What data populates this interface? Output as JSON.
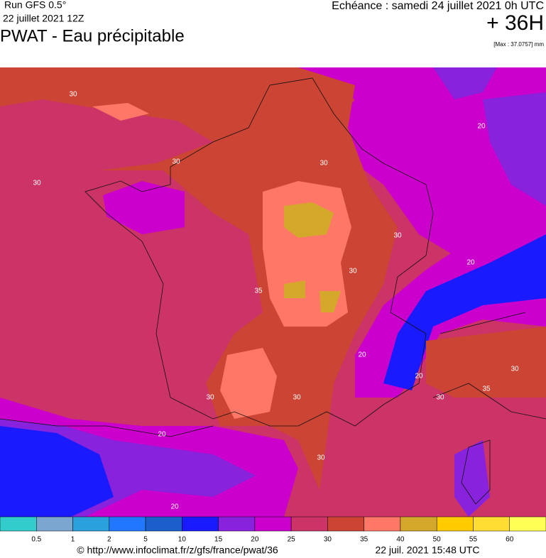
{
  "header": {
    "run": "Run GFS 0.5°",
    "run_date": "22 juillet 2021 12Z",
    "title": "PWAT - Eau précipitable",
    "echeance": "Echéance : samedi 24 juillet 2021 0h UTC",
    "lead": "+ 36H",
    "max": "[Max : 37.0757] mm"
  },
  "map": {
    "contour_labels": [
      "30",
      "30",
      "30",
      "30",
      "20",
      "30",
      "30",
      "35",
      "20",
      "20",
      "20",
      "30",
      "30",
      "35",
      "30",
      "30",
      "20",
      "30",
      "20"
    ]
  },
  "colorbar": {
    "colors": [
      "#33cccc",
      "#7aa6cf",
      "#2aa0dd",
      "#2277ff",
      "#1a5fcc",
      "#1a1aff",
      "#8822dd",
      "#cc00cc",
      "#cc3366",
      "#cc4433",
      "#ff7766",
      "#d4a82a",
      "#ffcc00",
      "#ffdd33",
      "#ffff55"
    ],
    "ticks": [
      0.5,
      1,
      2,
      5,
      10,
      15,
      20,
      25,
      30,
      35,
      40,
      50,
      55,
      60
    ]
  },
  "footer": {
    "url": "© http://www.infoclimat.fr/z/gfs/france/pwat/36",
    "timestamp": "22 juil. 2021 15:48 UTC"
  }
}
